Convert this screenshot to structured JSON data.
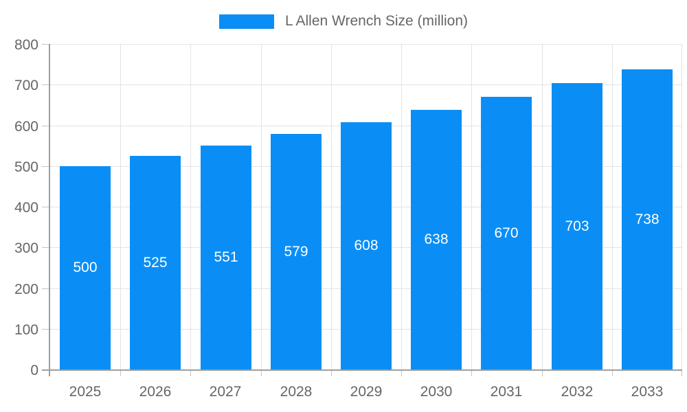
{
  "chart_data": {
    "type": "bar",
    "title": "L Allen Wrench Size (million)",
    "categories": [
      "2025",
      "2026",
      "2027",
      "2028",
      "2029",
      "2030",
      "2031",
      "2032",
      "2033"
    ],
    "values": [
      500,
      525,
      551,
      579,
      608,
      638,
      670,
      703,
      738
    ],
    "ylim": [
      0,
      800
    ],
    "ytick_step": 100,
    "xlabel": "",
    "ylabel": "",
    "grid": true,
    "legend_position": "top-center",
    "value_label_position": "inside-center"
  },
  "legend": {
    "series_label": "L Allen Wrench Size (million)",
    "swatch_icon": "blue-rect-swatch"
  },
  "colors": {
    "bar": "#0a8ef5",
    "grid": "#e3e3e3",
    "axis": "#9e9e9e",
    "tick": "#c4c4c4",
    "axis_label": "#666666",
    "value_label": "#ffffff",
    "background": "#ffffff"
  }
}
